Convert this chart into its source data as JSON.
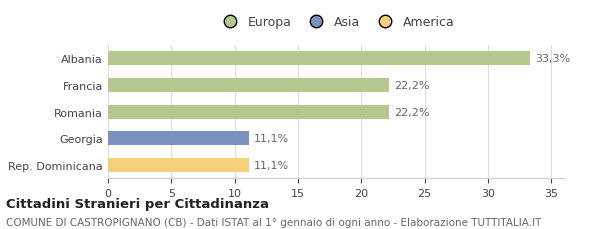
{
  "categories": [
    "Albania",
    "Francia",
    "Romania",
    "Georgia",
    "Rep. Dominicana"
  ],
  "values": [
    33.3,
    22.2,
    22.2,
    11.1,
    11.1
  ],
  "bar_colors": [
    "#b5c98e",
    "#b5c98e",
    "#b5c98e",
    "#7b92c0",
    "#f5d07a"
  ],
  "value_labels": [
    "33,3%",
    "22,2%",
    "22,2%",
    "11,1%",
    "11,1%"
  ],
  "legend_labels": [
    "Europa",
    "Asia",
    "America"
  ],
  "legend_colors": [
    "#b5c98e",
    "#7b92c0",
    "#f5d07a"
  ],
  "xlim": [
    0,
    36
  ],
  "xticks": [
    0,
    5,
    10,
    15,
    20,
    25,
    30,
    35
  ],
  "title_bold": "Cittadini Stranieri per Cittadinanza",
  "subtitle": "COMUNE DI CASTROPIGNANO (CB) - Dati ISTAT al 1° gennaio di ogni anno - Elaborazione TUTTITALIA.IT",
  "background_color": "#ffffff",
  "bar_height": 0.52,
  "title_fontsize": 9.5,
  "subtitle_fontsize": 7.5,
  "tick_fontsize": 8,
  "label_fontsize": 8,
  "legend_fontsize": 9
}
